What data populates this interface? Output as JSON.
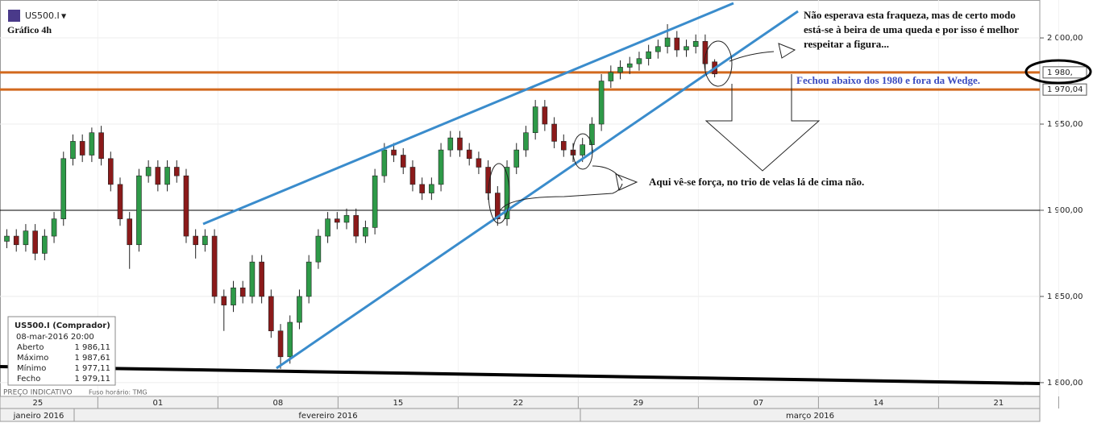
{
  "header": {
    "symbol": "US500.I",
    "chart_label": "Gráfico 4h"
  },
  "chart_data": {
    "type": "candlestick",
    "x": [
      -1.8,
      -1.25,
      -0.7,
      -0.15,
      0.4,
      0.95,
      1.5,
      2.05,
      2.6,
      3.15,
      3.7,
      4.25,
      4.8,
      5.35,
      5.9,
      6.45,
      7,
      7.55,
      8.1,
      8.65,
      9.2,
      9.75,
      10.3,
      10.85,
      11.4,
      11.95,
      12.5,
      13.05,
      13.6,
      14.15,
      14.7,
      15.25,
      15.8,
      16.35,
      16.9,
      17.45,
      18,
      18.55,
      19.1,
      19.65,
      20.2,
      20.75,
      21.3,
      21.85,
      22.4,
      22.95,
      23.5,
      24.05,
      24.6,
      25.15,
      25.7,
      26.25,
      26.8,
      27.35,
      27.9,
      28.45,
      29,
      29.55,
      30.1,
      30.65,
      31.2,
      31.75,
      32.3,
      32.85,
      33.4,
      33.95,
      34.5,
      35.05,
      35.6,
      36.15,
      36.7,
      37.25,
      37.8,
      38.35,
      38.9,
      39.45
    ],
    "open": [
      1882,
      1885,
      1880,
      1888,
      1875,
      1885,
      1895,
      1930,
      1940,
      1932,
      1945,
      1930,
      1915,
      1895,
      1880,
      1920,
      1925,
      1915,
      1925,
      1920,
      1885,
      1880,
      1885,
      1850,
      1845,
      1855,
      1850,
      1870,
      1850,
      1830,
      1815,
      1835,
      1850,
      1870,
      1885,
      1895,
      1893,
      1897,
      1885,
      1890,
      1920,
      1935,
      1932,
      1925,
      1915,
      1910,
      1915,
      1935,
      1942,
      1935,
      1930,
      1925,
      1910,
      1895,
      1925,
      1935,
      1945,
      1960,
      1950,
      1940,
      1935,
      1932,
      1938,
      1950,
      1975,
      1980,
      1983,
      1985,
      1988,
      1992,
      1995,
      2000,
      1993,
      1995,
      1998,
      1986.11
    ],
    "high": [
      1889,
      1889,
      1892,
      1892,
      1889,
      1899,
      1934,
      1944,
      1944,
      1948,
      1949,
      1934,
      1919,
      1899,
      1924,
      1929,
      1929,
      1929,
      1929,
      1924,
      1889,
      1889,
      1889,
      1854,
      1859,
      1859,
      1874,
      1874,
      1854,
      1834,
      1839,
      1854,
      1874,
      1889,
      1899,
      1899,
      1901,
      1901,
      1894,
      1924,
      1939,
      1939,
      1936,
      1929,
      1919,
      1919,
      1939,
      1946,
      1946,
      1939,
      1934,
      1929,
      1914,
      1929,
      1939,
      1949,
      1964,
      1964,
      1954,
      1944,
      1939,
      1942,
      1954,
      1979,
      1984,
      1987,
      1989,
      1992,
      1996,
      1999,
      2008,
      2004,
      1999,
      2002,
      2002,
      1987.61
    ],
    "low": [
      1878,
      1876,
      1876,
      1871,
      1871,
      1881,
      1891,
      1926,
      1928,
      1928,
      1926,
      1911,
      1891,
      1866,
      1876,
      1916,
      1911,
      1911,
      1916,
      1881,
      1872,
      1876,
      1846,
      1830,
      1841,
      1846,
      1846,
      1846,
      1826,
      1808,
      1811,
      1831,
      1846,
      1866,
      1881,
      1889,
      1889,
      1881,
      1881,
      1886,
      1916,
      1928,
      1921,
      1911,
      1906,
      1906,
      1911,
      1931,
      1931,
      1926,
      1921,
      1906,
      1891,
      1891,
      1921,
      1931,
      1941,
      1946,
      1936,
      1931,
      1928,
      1928,
      1934,
      1946,
      1971,
      1976,
      1979,
      1981,
      1984,
      1988,
      1991,
      1989,
      1989,
      1991,
      1981,
      1977.11
    ],
    "close": [
      1885,
      1880,
      1888,
      1875,
      1885,
      1895,
      1930,
      1940,
      1932,
      1945,
      1930,
      1915,
      1895,
      1880,
      1920,
      1925,
      1915,
      1925,
      1920,
      1885,
      1880,
      1885,
      1850,
      1845,
      1855,
      1850,
      1870,
      1850,
      1830,
      1815,
      1835,
      1850,
      1870,
      1885,
      1895,
      1893,
      1897,
      1885,
      1890,
      1920,
      1935,
      1932,
      1925,
      1915,
      1910,
      1915,
      1935,
      1942,
      1935,
      1930,
      1925,
      1910,
      1895,
      1925,
      1935,
      1945,
      1960,
      1950,
      1940,
      1935,
      1932,
      1938,
      1950,
      1975,
      1980,
      1983,
      1985,
      1988,
      1992,
      1995,
      2000,
      1993,
      1995,
      1998,
      1985,
      1979.11
    ],
    "up_color": "#2e9a48",
    "down_color": "#8b1a1a",
    "xlim": [
      -2.2,
      58.4
    ],
    "xticks": [
      {
        "value": 0,
        "label": "25"
      },
      {
        "value": 7,
        "label": "01"
      },
      {
        "value": 14,
        "label": "08"
      },
      {
        "value": 21,
        "label": "15"
      },
      {
        "value": 28,
        "label": "22"
      },
      {
        "value": 35,
        "label": "29"
      },
      {
        "value": 42,
        "label": "07"
      },
      {
        "value": 49,
        "label": "14"
      },
      {
        "value": 56,
        "label": "21"
      }
    ],
    "months": [
      "janeiro 2016",
      "fevereiro 2016",
      "março 2016"
    ],
    "ylim": [
      1792,
      2022
    ],
    "yticks": [
      {
        "value": 2000,
        "label": "2 000,00"
      },
      {
        "value": 1950,
        "label": "1 950,00"
      },
      {
        "value": 1900,
        "label": "1 900,00"
      },
      {
        "value": 1850,
        "label": "1 850,00"
      },
      {
        "value": 1800,
        "label": "1 800,00"
      }
    ],
    "grid": true,
    "hlines": [
      {
        "value": 1980,
        "label": "1 980,",
        "color": "#d2691e"
      },
      {
        "value": 1970.04,
        "label": "1 970,04",
        "color": "#d2691e"
      },
      {
        "value": 1900,
        "color": "#000000"
      }
    ],
    "annotations": [
      "Não esperava esta fraqueza, mas de certo modo",
      "está-se à beira de uma queda e por isso é melhor",
      "respeitar a figura...",
      "Fechou abaixo dos 1980 e fora da Wedge.",
      "Aqui vê-se força, no trio de velas lá de cima não."
    ]
  },
  "info_box": {
    "title": "US500.I (Comprador)",
    "date": "08-mar-2016 20:00",
    "rows": [
      {
        "label": "Aberto",
        "value": "1 986,11"
      },
      {
        "label": "Máximo",
        "value": "1 987,61"
      },
      {
        "label": "Mínimo",
        "value": "1 977,11"
      },
      {
        "label": "Fecho",
        "value": "1 979,11"
      }
    ]
  },
  "footer": {
    "price_note": "PREÇO INDICATIVO",
    "timezone": "Fuso horário: TMG"
  }
}
